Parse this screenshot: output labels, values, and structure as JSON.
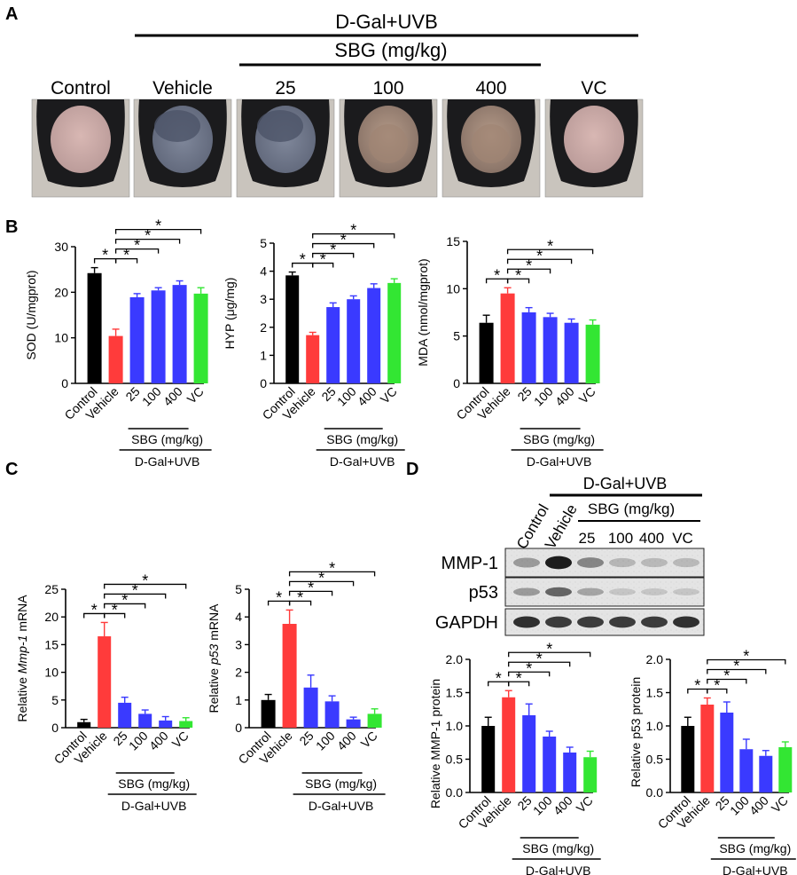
{
  "panels": {
    "A": "A",
    "B": "B",
    "C": "C",
    "D": "D"
  },
  "panel_a": {
    "treatment": "D-Gal+UVB",
    "sbg_header": "SBG (mg/kg)",
    "labels": [
      "Control",
      "Vehicle",
      "25",
      "100",
      "400",
      "VC"
    ]
  },
  "x_groups": {
    "six": [
      "Control",
      "Vehicle",
      "25",
      "100",
      "400",
      "VC"
    ],
    "sbg_label": "SBG (mg/kg)",
    "treatment_label": "D-Gal+UVB"
  },
  "colors": {
    "control": "#000000",
    "vehicle": "#ff3b3b",
    "sbg": "#3a3aff",
    "vc": "#33e633",
    "photo_bg": "#c9c4bd"
  },
  "western": {
    "treatment": "D-Gal+UVB",
    "sbg_header": "SBG (mg/kg)",
    "lanes": [
      "Control",
      "Vehicle",
      "25",
      "100",
      "400",
      "VC"
    ],
    "bands": [
      "MMP-1",
      "p53",
      "GAPDH"
    ]
  },
  "significance_marker": "*",
  "chart_data": [
    {
      "id": "sod",
      "type": "bar",
      "categories": [
        "Control",
        "Vehicle",
        "25",
        "100",
        "400",
        "VC"
      ],
      "values": [
        24.2,
        10.4,
        18.9,
        20.4,
        21.6,
        19.7
      ],
      "errors": [
        1.2,
        1.5,
        0.8,
        0.6,
        0.9,
        1.3
      ],
      "ylabel": "SOD (U/mgprot)",
      "ylim": [
        0,
        30
      ],
      "yticks": [
        "0",
        "10",
        "20",
        "30"
      ],
      "sig_brackets": [
        [
          0,
          1
        ],
        [
          1,
          2
        ],
        [
          1,
          3
        ],
        [
          1,
          4
        ],
        [
          1,
          5
        ]
      ]
    },
    {
      "id": "hyp",
      "type": "bar",
      "categories": [
        "Control",
        "Vehicle",
        "25",
        "100",
        "400",
        "VC"
      ],
      "values": [
        3.85,
        1.72,
        2.72,
        3.0,
        3.4,
        3.58
      ],
      "errors": [
        0.12,
        0.1,
        0.15,
        0.12,
        0.15,
        0.15
      ],
      "ylabel": "HYP (μg/mg)",
      "ylim": [
        0,
        5
      ],
      "yticks": [
        "0",
        "1",
        "2",
        "3",
        "4",
        "5"
      ],
      "sig_brackets": [
        [
          0,
          1
        ],
        [
          1,
          2
        ],
        [
          1,
          3
        ],
        [
          1,
          4
        ],
        [
          1,
          5
        ]
      ]
    },
    {
      "id": "mda",
      "type": "bar",
      "categories": [
        "Control",
        "Vehicle",
        "25",
        "100",
        "400",
        "VC"
      ],
      "values": [
        6.4,
        9.5,
        7.5,
        7.0,
        6.4,
        6.2
      ],
      "errors": [
        0.8,
        0.6,
        0.5,
        0.4,
        0.4,
        0.5
      ],
      "ylabel": "MDA (nmol/mgprot)",
      "ylim": [
        0,
        15
      ],
      "yticks": [
        "0",
        "5",
        "10",
        "15"
      ],
      "sig_brackets": [
        [
          0,
          1
        ],
        [
          1,
          2
        ],
        [
          1,
          3
        ],
        [
          1,
          4
        ],
        [
          1,
          5
        ]
      ]
    },
    {
      "id": "mmp1_mrna",
      "type": "bar",
      "categories": [
        "Control",
        "Vehicle",
        "25",
        "100",
        "400",
        "VC"
      ],
      "values": [
        1.0,
        16.5,
        4.5,
        2.5,
        1.3,
        1.2
      ],
      "errors": [
        0.5,
        2.5,
        1.0,
        0.7,
        0.7,
        0.6
      ],
      "ylabel_parts": [
        "Relative ",
        "Mmp-1",
        " mRNA"
      ],
      "ylim": [
        0,
        25
      ],
      "yticks": [
        "0",
        "5",
        "10",
        "15",
        "20",
        "25"
      ],
      "sig_brackets": [
        [
          0,
          1
        ],
        [
          1,
          2
        ],
        [
          1,
          3
        ],
        [
          1,
          4
        ],
        [
          1,
          5
        ]
      ]
    },
    {
      "id": "p53_mrna",
      "type": "bar",
      "categories": [
        "Control",
        "Vehicle",
        "25",
        "100",
        "400",
        "VC"
      ],
      "values": [
        1.0,
        3.75,
        1.45,
        0.95,
        0.3,
        0.5
      ],
      "errors": [
        0.2,
        0.5,
        0.45,
        0.2,
        0.08,
        0.18
      ],
      "ylabel_parts": [
        "Relative ",
        "p53",
        " mRNA"
      ],
      "ylim": [
        0,
        5
      ],
      "yticks": [
        "0",
        "1",
        "2",
        "3",
        "4",
        "5"
      ],
      "sig_brackets": [
        [
          0,
          1
        ],
        [
          1,
          2
        ],
        [
          1,
          3
        ],
        [
          1,
          4
        ],
        [
          1,
          5
        ]
      ]
    },
    {
      "id": "mmp1_protein",
      "type": "bar",
      "categories": [
        "Control",
        "Vehicle",
        "25",
        "100",
        "400",
        "VC"
      ],
      "values": [
        1.0,
        1.43,
        1.16,
        0.84,
        0.6,
        0.53
      ],
      "errors": [
        0.13,
        0.1,
        0.17,
        0.08,
        0.08,
        0.09
      ],
      "ylabel": "Relative  MMP-1 protein",
      "ylim": [
        0,
        2.0
      ],
      "yticks": [
        "0.0",
        "0.5",
        "1.0",
        "1.5",
        "2.0"
      ],
      "sig_brackets": [
        [
          0,
          1
        ],
        [
          1,
          2
        ],
        [
          1,
          3
        ],
        [
          1,
          4
        ],
        [
          1,
          5
        ]
      ]
    },
    {
      "id": "p53_protein",
      "type": "bar",
      "categories": [
        "Control",
        "Vehicle",
        "25",
        "100",
        "400",
        "VC"
      ],
      "values": [
        1.0,
        1.32,
        1.2,
        0.65,
        0.55,
        0.68
      ],
      "errors": [
        0.13,
        0.1,
        0.16,
        0.15,
        0.08,
        0.08
      ],
      "ylabel": "Relative  p53 protein",
      "ylim": [
        0,
        2.0
      ],
      "yticks": [
        "0.0",
        "0.5",
        "1.0",
        "1.5",
        "2.0"
      ],
      "sig_brackets": [
        [
          0,
          1
        ],
        [
          1,
          2
        ],
        [
          1,
          3
        ],
        [
          1,
          4
        ],
        [
          1,
          5
        ]
      ]
    }
  ]
}
